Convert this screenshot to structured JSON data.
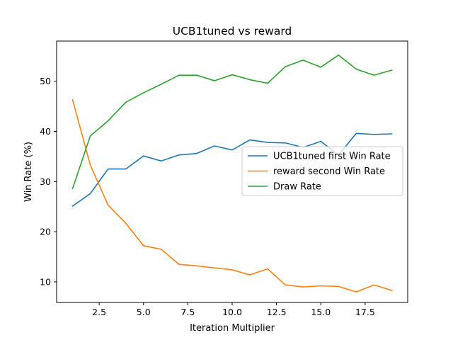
{
  "chart_data": {
    "type": "line",
    "title": "UCB1tuned vs reward",
    "xlabel": "Iteration Multiplier",
    "ylabel": "Win Rate (%)",
    "xlim": [
      0.1,
      19.9
    ],
    "ylim": [
      5.9,
      58.0
    ],
    "xticks": [
      2.5,
      5.0,
      7.5,
      10.0,
      12.5,
      15.0,
      17.5
    ],
    "xtick_labels": [
      "2.5",
      "5.0",
      "7.5",
      "10.0",
      "12.5",
      "15.0",
      "17.5"
    ],
    "yticks": [
      10,
      20,
      30,
      40,
      50
    ],
    "ytick_labels": [
      "10",
      "20",
      "30",
      "40",
      "50"
    ],
    "grid": false,
    "legend_position": "center-right",
    "x": [
      1,
      2,
      3,
      4,
      5,
      6,
      7,
      8,
      9,
      10,
      11,
      12,
      13,
      14,
      15,
      16,
      17,
      18,
      19
    ],
    "series": [
      {
        "name": "UCB1tuned first Win Rate",
        "color": "#1f77b4",
        "values": [
          25.1,
          27.6,
          32.5,
          32.5,
          35.1,
          34.1,
          35.3,
          35.6,
          37.1,
          36.3,
          38.3,
          37.8,
          37.7,
          36.8,
          38.0,
          35.3,
          39.6,
          39.4,
          39.5
        ]
      },
      {
        "name": "reward second Win Rate",
        "color": "#ff7f0e",
        "values": [
          46.3,
          33.3,
          25.3,
          21.7,
          17.2,
          16.5,
          13.5,
          13.2,
          12.8,
          12.4,
          11.4,
          12.6,
          9.4,
          9.0,
          9.2,
          9.1,
          8.0,
          9.4,
          8.3
        ]
      },
      {
        "name": "Draw Rate",
        "color": "#2ca02c",
        "values": [
          28.6,
          39.1,
          42.1,
          45.8,
          47.7,
          49.4,
          51.2,
          51.2,
          50.1,
          51.3,
          50.3,
          49.6,
          52.9,
          54.2,
          52.8,
          55.2,
          52.4,
          51.2,
          52.2
        ]
      }
    ]
  }
}
